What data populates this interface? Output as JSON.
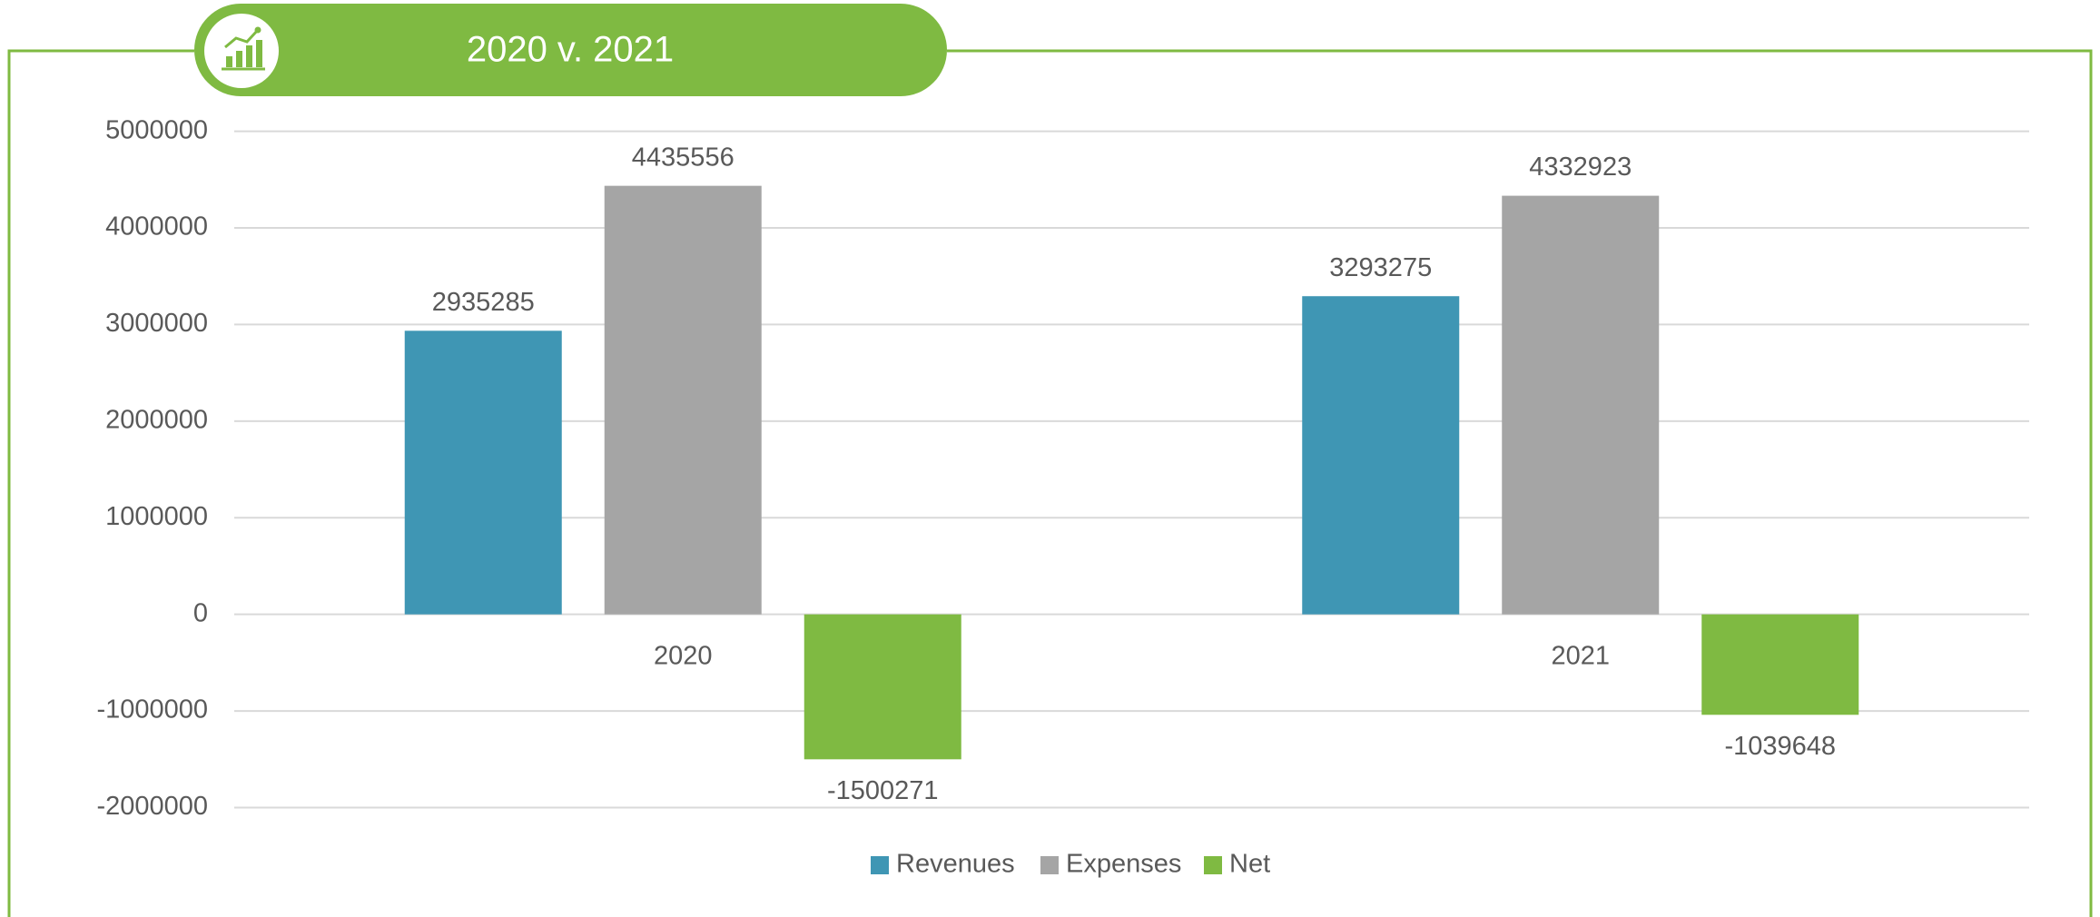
{
  "chart_data": {
    "type": "bar",
    "title": "2020 v. 2021",
    "categories": [
      "2020",
      "2021"
    ],
    "series": [
      {
        "name": "Revenues",
        "color": "#3f96b4",
        "values": [
          2935285,
          3293275
        ]
      },
      {
        "name": "Expenses",
        "color": "#a5a5a5",
        "values": [
          4435556,
          4332923
        ]
      },
      {
        "name": "Net",
        "color": "#7fba42",
        "values": [
          -1500271,
          -1039648
        ]
      }
    ],
    "ylim": [
      -2000000,
      5000000
    ],
    "yticks": [
      -2000000,
      -1000000,
      0,
      1000000,
      2000000,
      3000000,
      4000000,
      5000000
    ],
    "grid": true,
    "legend": "bottom"
  }
}
